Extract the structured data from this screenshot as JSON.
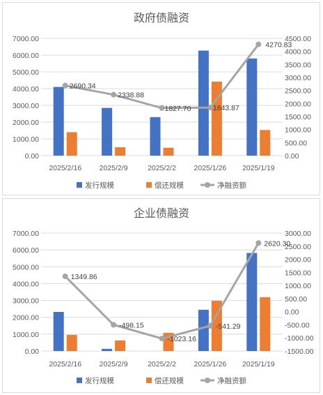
{
  "colors": {
    "issuance": "#4472C4",
    "repayment": "#ED7D31",
    "net": "#A5A5A5",
    "grid": "#D9D9D9",
    "text": "#595959"
  },
  "chart_data": [
    {
      "type": "bar",
      "title": "政府债融资",
      "categories": [
        "2025/2/16",
        "2025/2/9",
        "2025/2/2",
        "2025/1/26",
        "2025/1/19"
      ],
      "series": [
        {
          "name": "发行规模",
          "type": "bar",
          "axis": "left",
          "values": [
            4100,
            2850,
            2300,
            6270,
            5800
          ]
        },
        {
          "name": "偿还规模",
          "type": "bar",
          "axis": "left",
          "values": [
            1400,
            500,
            470,
            4420,
            1530
          ]
        },
        {
          "name": "净融资额",
          "type": "line",
          "axis": "right",
          "values": [
            2690.34,
            2338.88,
            1827.7,
            1843.87,
            4270.83
          ],
          "labels": [
            "2690.34",
            "2338.88",
            "1827.70",
            "1843.87",
            "4270.83"
          ]
        }
      ],
      "left_ticks": [
        "0.00",
        "1000.00",
        "2000.00",
        "3000.00",
        "4000.00",
        "5000.00",
        "6000.00",
        "7000.00"
      ],
      "right_ticks": [
        "0.00",
        "500.00",
        "1000.00",
        "1500.00",
        "2000.00",
        "2500.00",
        "3000.00",
        "3500.00",
        "4000.00",
        "4500.00"
      ],
      "ylim_left": [
        0,
        7000
      ],
      "ylim_right": [
        0,
        4500
      ],
      "grid": true,
      "legend_position": "bottom"
    },
    {
      "type": "bar",
      "title": "企业债融资",
      "categories": [
        "2025/2/16",
        "2025/2/9",
        "2025/2/2",
        "2025/1/26",
        "2025/1/19"
      ],
      "series": [
        {
          "name": "发行规模",
          "type": "bar",
          "axis": "left",
          "values": [
            2320,
            130,
            0,
            2450,
            5820
          ]
        },
        {
          "name": "偿还规模",
          "type": "bar",
          "axis": "left",
          "values": [
            960,
            630,
            1080,
            2980,
            3200
          ]
        },
        {
          "name": "净融资额",
          "type": "line",
          "axis": "right",
          "values": [
            1349.86,
            -498.15,
            -1023.16,
            -541.29,
            2620.3
          ],
          "labels": [
            "1349.86",
            "-498.15",
            "-1023.16",
            "-541.29",
            "2620.30"
          ]
        }
      ],
      "left_ticks": [
        "0.00",
        "1000.00",
        "2000.00",
        "3000.00",
        "4000.00",
        "5000.00",
        "6000.00",
        "7000.00"
      ],
      "right_ticks": [
        "-1500.00",
        "-1000.00",
        "-500.00",
        "0.00",
        "500.00",
        "1000.00",
        "1500.00",
        "2000.00",
        "2500.00",
        "3000.00"
      ],
      "ylim_left": [
        0,
        7000
      ],
      "ylim_right": [
        -1500,
        3000
      ],
      "grid": true,
      "legend_position": "bottom"
    }
  ]
}
